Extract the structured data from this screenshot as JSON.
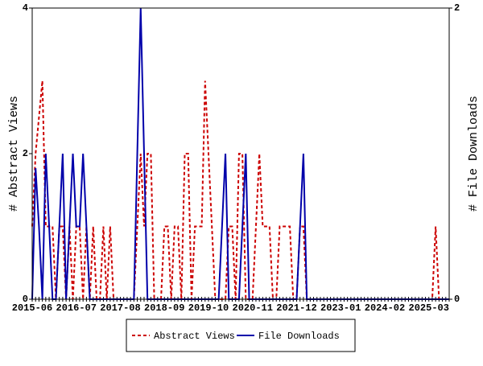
{
  "chart_data": {
    "type": "line",
    "categories": [
      "2015-06",
      null,
      null,
      null,
      null,
      null,
      null,
      null,
      null,
      null,
      null,
      null,
      null,
      "2016-07",
      null,
      null,
      null,
      null,
      null,
      null,
      null,
      null,
      null,
      null,
      null,
      null,
      "2017-08",
      null,
      null,
      null,
      null,
      null,
      null,
      null,
      null,
      null,
      null,
      null,
      null,
      "2018-09",
      null,
      null,
      null,
      null,
      null,
      null,
      null,
      null,
      null,
      null,
      null,
      null,
      "2019-10",
      null,
      null,
      null,
      null,
      null,
      null,
      null,
      null,
      null,
      null,
      null,
      null,
      "2020-11",
      null,
      null,
      null,
      null,
      null,
      null,
      null,
      null,
      null,
      null,
      null,
      null,
      "2021-12",
      null,
      null,
      null,
      null,
      null,
      null,
      null,
      null,
      null,
      null,
      null,
      null,
      "2023-01",
      null,
      null,
      null,
      null,
      null,
      null,
      null,
      null,
      null,
      null,
      null,
      null,
      "2024-02",
      null,
      null,
      null,
      null,
      null,
      null,
      null,
      null,
      null,
      null,
      null,
      null,
      "2025-03",
      null,
      null,
      null,
      null,
      null,
      null
    ],
    "series": [
      {
        "name": "Abstract Views",
        "color": "#cc0000",
        "dashed": true,
        "axis": "y",
        "values": [
          1,
          2,
          2.5,
          3,
          1,
          1,
          1,
          0,
          1,
          1,
          0,
          1,
          0,
          1,
          1,
          0,
          1,
          0,
          1,
          0,
          0,
          1,
          0,
          1,
          0,
          0,
          0,
          0,
          0,
          0,
          0,
          1,
          2,
          1,
          2,
          2,
          0,
          0,
          0,
          1,
          1,
          0,
          1,
          1,
          0,
          2,
          2,
          0,
          1,
          1,
          1,
          3,
          2,
          1,
          0,
          0,
          0,
          0,
          1,
          1,
          0,
          2,
          2,
          0,
          0,
          0,
          1,
          2,
          1,
          1,
          1,
          0,
          0,
          1,
          1,
          1,
          1,
          0,
          0,
          1,
          1,
          0,
          0,
          0,
          0,
          0,
          0,
          0,
          0,
          0,
          0,
          0,
          0,
          0,
          0,
          0,
          0,
          0,
          0,
          0,
          0,
          0,
          0,
          0,
          0,
          0,
          0,
          0,
          0,
          0,
          0,
          0,
          0,
          0,
          0,
          0,
          0,
          0,
          0,
          1,
          0,
          0,
          0,
          0
        ]
      },
      {
        "name": "File Downloads",
        "color": "#0000aa",
        "dashed": false,
        "axis": "y2",
        "values": [
          0,
          0.9,
          0.5,
          0,
          1,
          0.5,
          0,
          0,
          0.5,
          1,
          0,
          0.5,
          1,
          0.5,
          0.5,
          1,
          0.5,
          0,
          0,
          0,
          0,
          0,
          0,
          0,
          0,
          0,
          0,
          0,
          0,
          0,
          0,
          1,
          2,
          1,
          0,
          0,
          0,
          0,
          0,
          0,
          0,
          0,
          0,
          0,
          0,
          0,
          0,
          0,
          0,
          0,
          0,
          0,
          0,
          0,
          0,
          0,
          0.5,
          1,
          0,
          0,
          0,
          0,
          0.5,
          1,
          0,
          0,
          0,
          0,
          0,
          0,
          0,
          0,
          0,
          0,
          0,
          0,
          0,
          0,
          0,
          0.5,
          1,
          0,
          0,
          0,
          0,
          0,
          0,
          0,
          0,
          0,
          0,
          0,
          0,
          0,
          0,
          0,
          0,
          0,
          0,
          0,
          0,
          0,
          0,
          0,
          0,
          0,
          0,
          0,
          0,
          0,
          0,
          0,
          0,
          0,
          0,
          0,
          0,
          0,
          0,
          0,
          0,
          0,
          0,
          0
        ]
      }
    ],
    "ylim": [
      0,
      4
    ],
    "yticks": [
      0,
      2,
      4
    ],
    "y2lim": [
      0,
      2
    ],
    "y2ticks": [
      0,
      2
    ],
    "y_label": "# Abstract Views",
    "y2_label": "# File Downloads"
  }
}
